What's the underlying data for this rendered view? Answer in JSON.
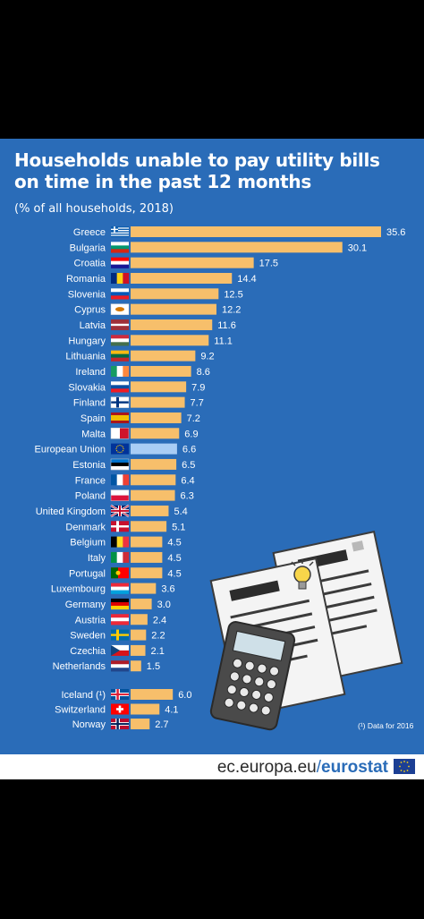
{
  "chart_data": {
    "type": "bar",
    "orientation": "horizontal",
    "title": "Households unable to pay utility bills on time in the past 12 months",
    "title_lines": [
      "Households unable to pay utility bills",
      "on time in the past 12 months"
    ],
    "subtitle": "(% of all households, 2018)",
    "xlabel": "",
    "ylabel": "",
    "xlim": [
      0,
      36
    ],
    "grid": false,
    "bar_color": "#f7bf6b",
    "highlight_color": "#a9cdf5",
    "categories": [
      "Greece",
      "Bulgaria",
      "Croatia",
      "Romania",
      "Slovenia",
      "Cyprus",
      "Latvia",
      "Hungary",
      "Lithuania",
      "Ireland",
      "Slovakia",
      "Finland",
      "Spain",
      "Malta",
      "European Union",
      "Estonia",
      "France",
      "Poland",
      "United Kingdom",
      "Denmark",
      "Belgium",
      "Italy",
      "Portugal",
      "Luxembourg",
      "Germany",
      "Austria",
      "Sweden",
      "Czechia",
      "Netherlands",
      "Iceland (¹)",
      "Switzerland",
      "Norway"
    ],
    "values": [
      35.6,
      30.1,
      17.5,
      14.4,
      12.5,
      12.2,
      11.6,
      11.1,
      9.2,
      8.6,
      7.9,
      7.7,
      7.2,
      6.9,
      6.6,
      6.5,
      6.4,
      6.3,
      5.4,
      5.1,
      4.5,
      4.5,
      4.5,
      3.6,
      3.0,
      2.4,
      2.2,
      2.1,
      1.5,
      6.0,
      4.1,
      2.7
    ],
    "value_labels": [
      "35.6",
      "30.1",
      "17.5",
      "14.4",
      "12.5",
      "12.2",
      "11.6",
      "11.1",
      "9.2",
      "8.6",
      "7.9",
      "7.7",
      "7.2",
      "6.9",
      "6.6",
      "6.5",
      "6.4",
      "6.3",
      "5.4",
      "5.1",
      "4.5",
      "4.5",
      "4.5",
      "3.6",
      "3.0",
      "2.4",
      "2.2",
      "2.1",
      "1.5",
      "6.0",
      "4.1",
      "2.7"
    ],
    "highlight": "European Union",
    "flags": [
      "greece-flag",
      "bulgaria-flag",
      "croatia-flag",
      "romania-flag",
      "slovenia-flag",
      "cyprus-flag",
      "latvia-flag",
      "hungary-flag",
      "lithuania-flag",
      "ireland-flag",
      "slovakia-flag",
      "finland-flag",
      "spain-flag",
      "malta-flag",
      "eu-flag",
      "estonia-flag",
      "france-flag",
      "poland-flag",
      "uk-flag",
      "denmark-flag",
      "belgium-flag",
      "italy-flag",
      "portugal-flag",
      "luxembourg-flag",
      "germany-flag",
      "austria-flag",
      "sweden-flag",
      "czechia-flag",
      "netherlands-flag",
      "iceland-flag",
      "switzerland-flag",
      "norway-flag"
    ],
    "footnote": "(¹) Data for 2016"
  },
  "footer": {
    "domain": "ec.europa.eu",
    "separator": "/",
    "brand": "eurostat"
  },
  "colors": {
    "background": "#2a6cb8",
    "bar": "#f7bf6b",
    "eu_bar": "#a9cdf5",
    "footer_bg": "#ffffff"
  },
  "illustration": {
    "icons": [
      "document-icon",
      "lightbulb-icon",
      "calculator-icon"
    ]
  }
}
